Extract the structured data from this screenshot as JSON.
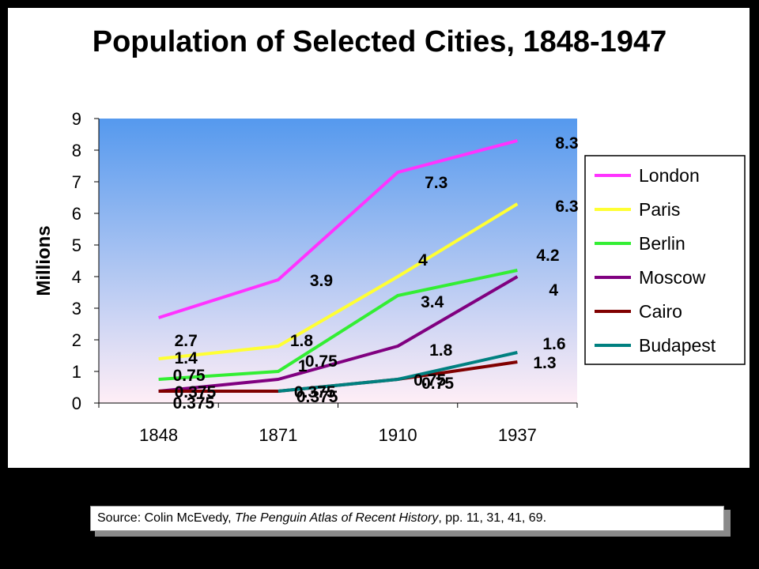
{
  "title": "Population of Selected Cities, 1848-1947",
  "source": {
    "prefix": "Source:  Colin McEvedy, ",
    "book": "The Penguin Atlas of Recent History",
    "suffix": ", pp. 11, 31, 41, 69."
  },
  "chart_data": {
    "type": "line",
    "title": "Population of Selected Cities, 1848-1947",
    "xlabel": "",
    "ylabel": "Millions",
    "categories": [
      "1848",
      "1871",
      "1910",
      "1937"
    ],
    "ylim": [
      0,
      9
    ],
    "yticks": [
      "0",
      "1",
      "2",
      "3",
      "4",
      "5",
      "6",
      "7",
      "8",
      "9"
    ],
    "grid": false,
    "legend_position": "right",
    "series": [
      {
        "name": "London",
        "color": "#FF33FF",
        "values": [
          2.7,
          3.9,
          7.3,
          8.3
        ],
        "labels": [
          "2.7",
          "3.9",
          "7.3",
          "8.3"
        ]
      },
      {
        "name": "Paris",
        "color": "#FFFF33",
        "values": [
          1.4,
          1.8,
          4,
          6.3
        ],
        "labels": [
          "1.4",
          "1.8",
          "4",
          "6.3"
        ]
      },
      {
        "name": "Berlin",
        "color": "#33EE33",
        "values": [
          0.75,
          1,
          3.4,
          4.2
        ],
        "labels": [
          "0.75",
          "1",
          "3.4",
          "4.2"
        ]
      },
      {
        "name": "Moscow",
        "color": "#800080",
        "values": [
          0.375,
          0.75,
          1.8,
          4
        ],
        "labels": [
          "0.375",
          "0.75",
          "1.8",
          "4"
        ]
      },
      {
        "name": "Cairo",
        "color": "#800000",
        "values": [
          0.375,
          0.375,
          0.75,
          1.3
        ],
        "labels": [
          "0.375",
          "0.375",
          "0.75",
          "1.3"
        ]
      },
      {
        "name": "Budapest",
        "color": "#008080",
        "values": [
          null,
          0.375,
          0.75,
          1.6
        ],
        "labels": [
          "",
          "0.375",
          "0.75",
          "1.6"
        ]
      }
    ],
    "plot_gradient": {
      "top": "#5599EE",
      "bottom": "#FFEEF6"
    }
  }
}
